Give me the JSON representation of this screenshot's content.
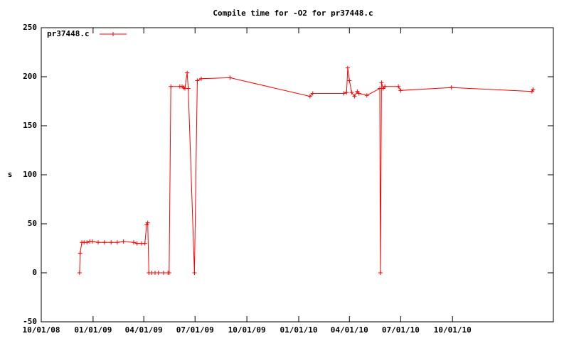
{
  "chart_data": {
    "type": "line",
    "title": "Compile time for -O2 for pr37448.c",
    "y_label": "s",
    "x": [
      "2008-12-08",
      "2008-12-09",
      "2008-12-12",
      "2008-12-16",
      "2008-12-21",
      "2008-12-26",
      "2008-12-31",
      "2009-01-10",
      "2009-01-21",
      "2009-02-02",
      "2009-02-13",
      "2009-02-24",
      "2009-03-14",
      "2009-03-20",
      "2009-03-28",
      "2009-04-03",
      "2009-04-06",
      "2009-04-08",
      "2009-04-10",
      "2009-04-15",
      "2009-04-21",
      "2009-04-27",
      "2009-05-06",
      "2009-05-14",
      "2009-05-16",
      "2009-05-19",
      "2009-06-04",
      "2009-06-08",
      "2009-06-11",
      "2009-06-13",
      "2009-06-17",
      "2009-06-19",
      "2009-06-30",
      "2009-07-05",
      "2009-07-12",
      "2009-09-01",
      "2010-01-21",
      "2010-01-26",
      "2010-03-22",
      "2010-03-27",
      "2010-03-29",
      "2010-04-01",
      "2010-04-05",
      "2010-04-10",
      "2010-04-15",
      "2010-04-18",
      "2010-05-02",
      "2010-05-25",
      "2010-05-26",
      "2010-05-28",
      "2010-05-31",
      "2010-06-03",
      "2010-06-27",
      "2010-07-01",
      "2010-09-29",
      "2011-02-19",
      "2011-02-21"
    ],
    "series": [
      {
        "name": "pr37448.c",
        "color": "#ff0000",
        "values": [
          0,
          20,
          31,
          31,
          31,
          32,
          32,
          31,
          31,
          31,
          31,
          32,
          31,
          30,
          30,
          30,
          49,
          51,
          0,
          0,
          0,
          0,
          0,
          0,
          0,
          190,
          190,
          190,
          189,
          188,
          204,
          188,
          0,
          196,
          198,
          199,
          180,
          183,
          183,
          184,
          209,
          196,
          184,
          180,
          185,
          183,
          181,
          188,
          0,
          194,
          188,
          190,
          190,
          186,
          189,
          185,
          187
        ]
      }
    ],
    "xlim": [
      "2008-10-01",
      "2011-03-29"
    ],
    "xticks": [
      {
        "value": "2008-10-01",
        "label": "10/01/08"
      },
      {
        "value": "2009-01-01",
        "label": "01/01/09"
      },
      {
        "value": "2009-04-01",
        "label": "04/01/09"
      },
      {
        "value": "2009-07-01",
        "label": "07/01/09"
      },
      {
        "value": "2009-10-01",
        "label": "10/01/09"
      },
      {
        "value": "2010-01-01",
        "label": "01/01/10"
      },
      {
        "value": "2010-04-01",
        "label": "04/01/10"
      },
      {
        "value": "2010-07-01",
        "label": "07/01/10"
      },
      {
        "value": "2010-10-01",
        "label": "10/01/10"
      }
    ],
    "ylim": [
      -50,
      250
    ],
    "yticks": [
      -50,
      0,
      50,
      100,
      150,
      200,
      250
    ],
    "legend": "top-left"
  }
}
